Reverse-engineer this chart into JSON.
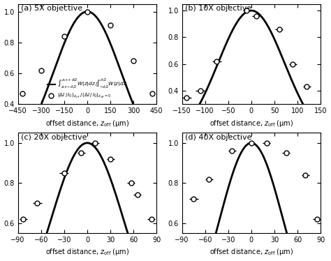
{
  "panels": [
    {
      "label": "(a) 5X objective",
      "xlim": [
        -450,
        450
      ],
      "ylim": [
        0.4,
        1.05
      ],
      "xticks": [
        -450,
        -300,
        -150,
        0,
        150,
        300,
        450
      ],
      "yticks": [
        0.4,
        0.6,
        0.8,
        1.0
      ],
      "curve_sigma": 220,
      "scatter_x": [
        -420,
        -300,
        -150,
        0,
        150,
        300,
        420
      ],
      "scatter_y": [
        0.47,
        0.62,
        0.84,
        1.0,
        0.91,
        0.68,
        0.47
      ],
      "scatter_xerr": [
        0,
        0,
        0,
        0,
        0,
        0,
        0
      ],
      "show_legend": true
    },
    {
      "label": "(b) 10X objective",
      "xlim": [
        -150,
        150
      ],
      "ylim": [
        0.3,
        1.05
      ],
      "xticks": [
        -150,
        -100,
        -50,
        0,
        50,
        100,
        150
      ],
      "yticks": [
        0.4,
        0.6,
        0.8,
        1.0
      ],
      "curve_sigma": 72,
      "scatter_x": [
        -140,
        -110,
        -75,
        -10,
        10,
        60,
        90,
        120
      ],
      "scatter_y": [
        0.35,
        0.4,
        0.62,
        1.0,
        0.96,
        0.86,
        0.6,
        0.43
      ],
      "scatter_xerr": [
        10,
        10,
        10,
        8,
        8,
        8,
        8,
        8
      ],
      "show_legend": false
    },
    {
      "label": "(c) 20X objective",
      "xlim": [
        -90,
        90
      ],
      "ylim": [
        0.55,
        1.05
      ],
      "xticks": [
        -90,
        -60,
        -30,
        0,
        30,
        60,
        90
      ],
      "yticks": [
        0.6,
        0.8,
        1.0
      ],
      "curve_sigma": 48,
      "scatter_x": [
        -83,
        -65,
        -30,
        -8,
        10,
        30,
        57,
        65,
        83
      ],
      "scatter_y": [
        0.62,
        0.7,
        0.85,
        0.95,
        1.0,
        0.92,
        0.8,
        0.74,
        0.62
      ],
      "scatter_xerr": [
        5,
        6,
        6,
        5,
        5,
        5,
        5,
        5,
        5
      ],
      "show_legend": false
    },
    {
      "label": "(d) 40X objective",
      "xlim": [
        -90,
        90
      ],
      "ylim": [
        0.55,
        1.05
      ],
      "xticks": [
        -90,
        -60,
        -30,
        0,
        30,
        60,
        90
      ],
      "yticks": [
        0.6,
        0.8,
        1.0
      ],
      "curve_sigma": 42,
      "scatter_x": [
        -75,
        -55,
        -25,
        0,
        20,
        45,
        70,
        85
      ],
      "scatter_y": [
        0.72,
        0.82,
        0.96,
        1.0,
        1.0,
        0.95,
        0.84,
        0.62
      ],
      "scatter_xerr": [
        6,
        5,
        5,
        5,
        5,
        5,
        5,
        5
      ],
      "show_legend": false
    }
  ],
  "xlabel": "offset distance, $z_\\mathrm{off}$ (μm)",
  "line_color": "#000000",
  "scatter_color": "#ffffff",
  "scatter_edgecolor": "#000000",
  "legend_line_label": "$\\int_{z_\\mathrm{off}-d/2}^{z_\\mathrm{off}+d/2}W(z)dz\\,/\\!\\int_{-d/2}^{d/2}W(z)dz$",
  "legend_scatter_label": "$(\\Delta I\\,/\\,I_0)_{z_\\mathrm{off}}\\,/\\,(\\Delta I\\,/\\,I_0)_{z_\\mathrm{off}=0}$"
}
